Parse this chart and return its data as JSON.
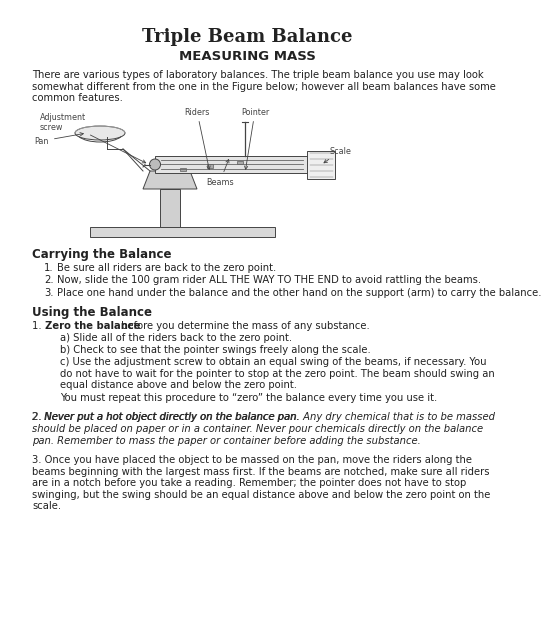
{
  "title": "Triple Beam Balance",
  "subtitle": "MEASURING MASS",
  "intro_text": "There are various types of laboratory balances. The triple beam balance you use may look\nsomewhat different from the one in the Figure below; however all beam balances have some\ncommon features.",
  "section1_title": "Carrying the Balance",
  "section1_items": [
    "Be sure all riders are back to the zero point.",
    "Now, slide the 100 gram rider ALL THE WAY TO THE END to avoid rattling the beams.",
    "Place one hand under the balance and the other hand on the support (arm) to carry the balance."
  ],
  "section2_title": "Using the Balance",
  "para1_lead": "1.",
  "para1_bold": "Zero the balance",
  "para1_rest": " before you determine the mass of any substance.",
  "para1_subs": [
    "a) Slide all of the riders back to the zero point.",
    "b) Check to see that the pointer swings freely along the scale.",
    "c) Use the adjustment screw to obtain an equal swing of the beams, if necessary. You\ndo not have to wait for the pointer to stop at the zero point. The beam should swing an\nequal distance above and below the zero point."
  ],
  "para1_end": "You must repeat this procedure to “zero” the balance every time you use it.",
  "para2_line1": "2. ",
  "para2_italic": "Never put a hot object directly on the balance pan.",
  "para2_mid": " Any dry chemical that is to be massed\nshould be placed on paper or in a container. ",
  "para2_italic2": "Never pour chemicals directly on the balance\npan.",
  "para2_end": " Remember to mass the paper or container before adding the substance.",
  "para3": "3. Once you have placed the object to be massed on the pan, move the riders along the\nbeams beginning with the largest mass first. If the beams are notched, make sure all riders\nare in a notch before you take a reading. Remember; the pointer does not have to stop\nswinging, but the swing should be an equal distance above and below the zero point on the\nscale.",
  "bg_color": "#ffffff",
  "text_color": "#222222"
}
